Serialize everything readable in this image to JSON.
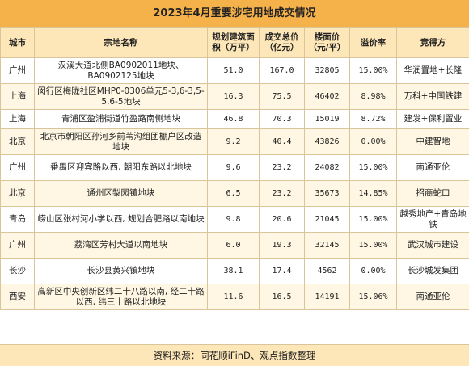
{
  "title": "2023年4月重要涉宅用地成交情况",
  "headers": {
    "city": "城市",
    "land": "宗地名称",
    "area": "规划建筑面积（万平）",
    "total": "成交总价（亿元）",
    "floor_price": "楼面价（元/平）",
    "premium": "溢价率",
    "buyer": "竞得方"
  },
  "rows": [
    {
      "city": "广州",
      "land": "汉溪大道北侧BA0902011地块、BA0902125地块",
      "area": "51.0",
      "total": "167.0",
      "floor_price": "32805",
      "premium": "15.00%",
      "buyer": "华润置地+长隆"
    },
    {
      "city": "上海",
      "land": "闵行区梅陇社区MHP0-0306单元5-3,6-3,5-5,6-5地块",
      "area": "16.3",
      "total": "75.5",
      "floor_price": "46402",
      "premium": "8.98%",
      "buyer": "万科+中国铁建"
    },
    {
      "city": "上海",
      "land": "青浦区盈浦街道竹盈路南侧地块",
      "area": "46.8",
      "total": "70.3",
      "floor_price": "15019",
      "premium": "8.72%",
      "buyer": "建发+保利置业"
    },
    {
      "city": "北京",
      "land": "北京市朝阳区孙河乡前苇沟组团棚户区改造地块",
      "area": "9.2",
      "total": "40.4",
      "floor_price": "43826",
      "premium": "0.00%",
      "buyer": "中建智地"
    },
    {
      "city": "广州",
      "land": "番禺区迎宾路以西, 朝阳东路以北地块",
      "area": "9.6",
      "total": "23.2",
      "floor_price": "24082",
      "premium": "15.00%",
      "buyer": "南通亚伦"
    },
    {
      "city": "北京",
      "land": "通州区梨园镇地块",
      "area": "6.5",
      "total": "23.2",
      "floor_price": "35673",
      "premium": "14.85%",
      "buyer": "招商蛇口"
    },
    {
      "city": "青岛",
      "land": "崂山区张村河小学以西, 规划合肥路以南地块",
      "area": "9.8",
      "total": "20.6",
      "floor_price": "21045",
      "premium": "15.00%",
      "buyer": "越秀地产+青岛地铁"
    },
    {
      "city": "广州",
      "land": "荔湾区芳村大道以南地块",
      "area": "6.0",
      "total": "19.3",
      "floor_price": "32145",
      "premium": "15.00%",
      "buyer": "武汉城市建设"
    },
    {
      "city": "长沙",
      "land": "长沙县黄兴镇地块",
      "area": "38.1",
      "total": "17.4",
      "floor_price": "4562",
      "premium": "0.00%",
      "buyer": "长沙城发集团"
    },
    {
      "city": "西安",
      "land": "高新区中央创新区纬二十八路以南, 经二十路以西, 纬三十路以北地块",
      "area": "11.6",
      "total": "16.5",
      "floor_price": "14191",
      "premium": "15.06%",
      "buyer": "南通亚伦"
    }
  ],
  "footer": "资料来源：同花顺iFinD、观点指数整理"
}
